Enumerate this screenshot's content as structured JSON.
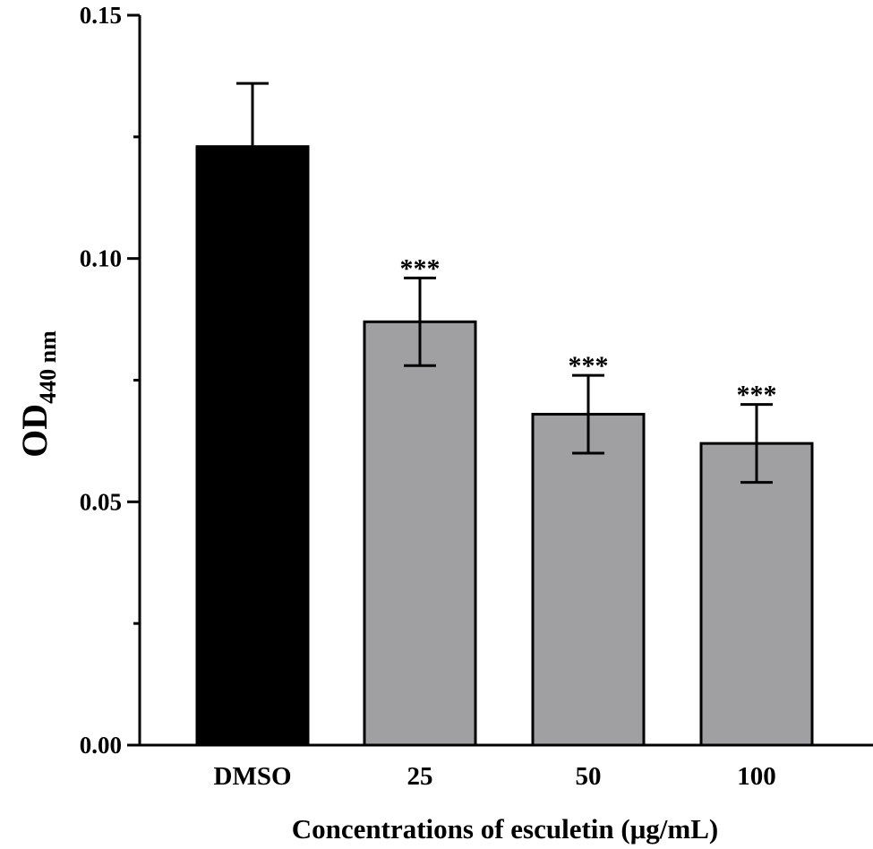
{
  "chart_data": {
    "type": "bar",
    "categories": [
      "DMSO",
      "25",
      "50",
      "100"
    ],
    "values": [
      0.123,
      0.087,
      0.068,
      0.062
    ],
    "errors": [
      0.013,
      0.009,
      0.008,
      0.008
    ],
    "significance": [
      "",
      "***",
      "***",
      "***"
    ],
    "bar_colors": [
      "#000000",
      "#a0a0a2",
      "#a0a0a2",
      "#a0a0a2"
    ],
    "ylim": [
      0,
      0.15
    ],
    "yticks": [
      0.0,
      0.05,
      0.1,
      0.15
    ],
    "ytick_labels": [
      "0.00",
      "0.05",
      "0.10",
      "0.15"
    ],
    "minor_yticks": [
      0.025,
      0.075,
      0.125
    ],
    "ylabel_main": "OD",
    "ylabel_sub": "440 nm",
    "xlabel": "Concentrations of esculetin (μg/mL)",
    "grid": false,
    "legend": "none"
  }
}
